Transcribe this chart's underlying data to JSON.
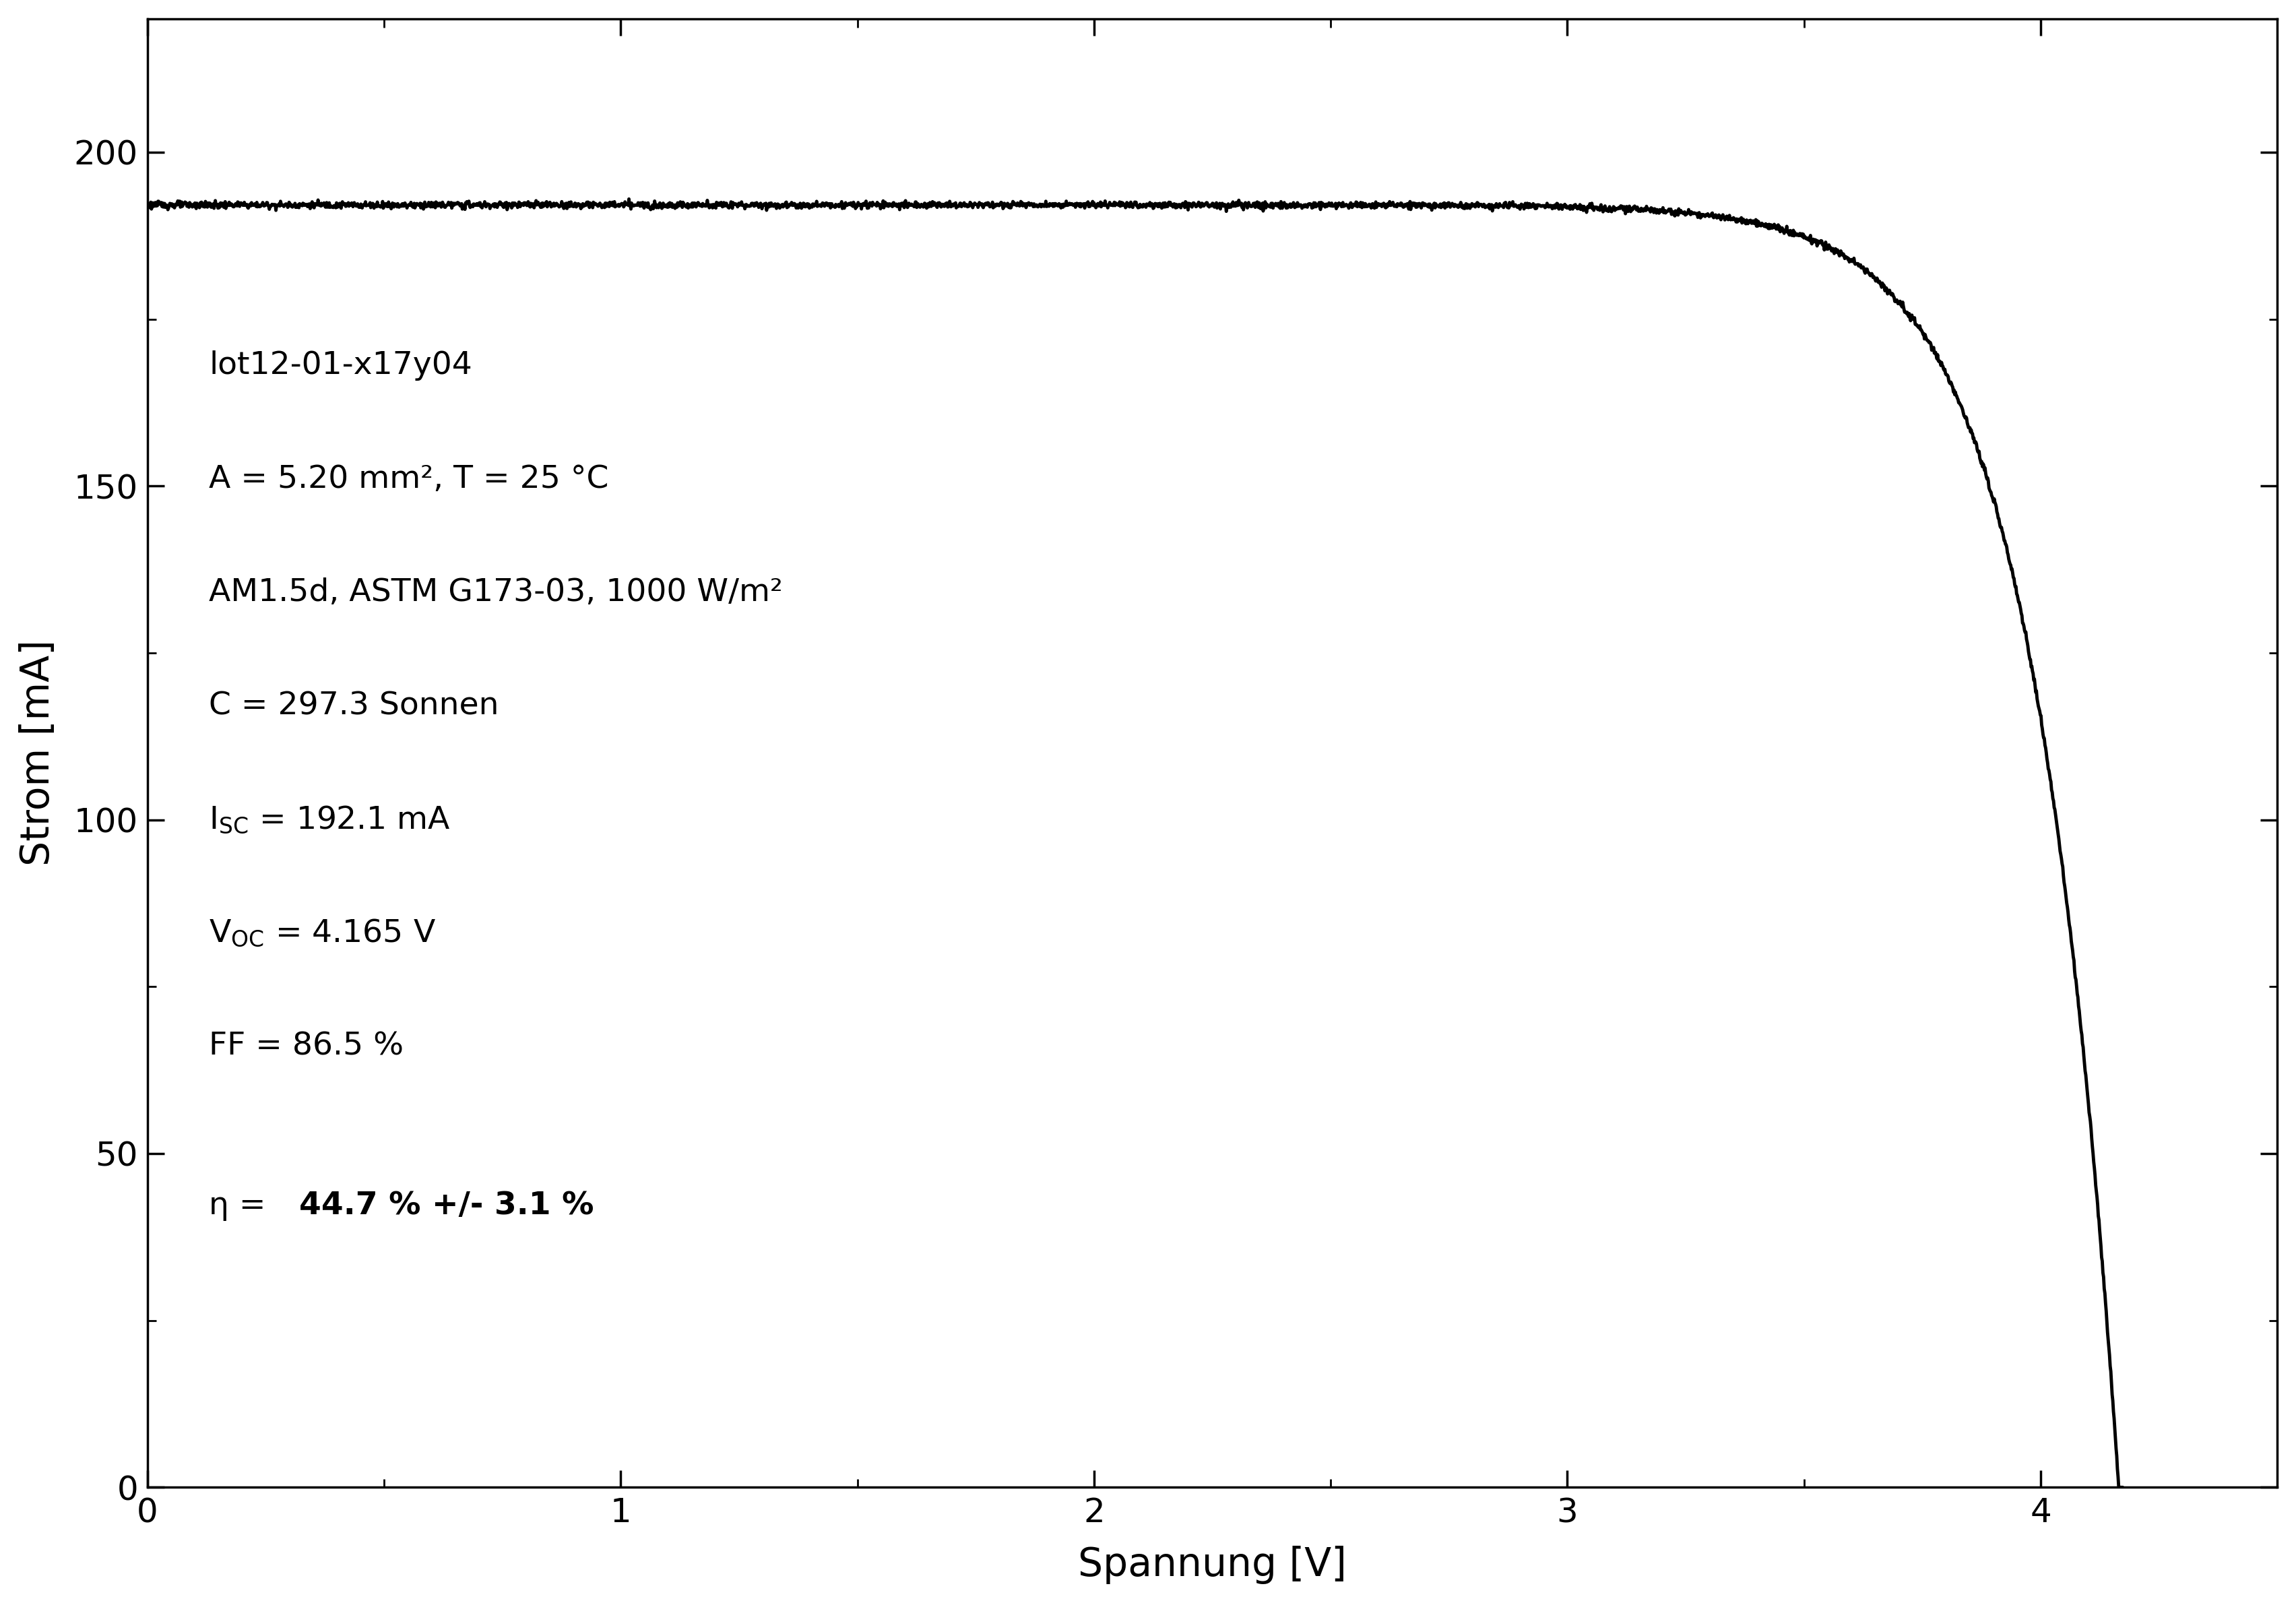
{
  "title": "",
  "xlabel": "Spannung [V]",
  "ylabel": "Strom [mA]",
  "xlim": [
    0,
    4.5
  ],
  "ylim": [
    0,
    220
  ],
  "xticks": [
    0,
    1,
    2,
    3,
    4
  ],
  "yticks": [
    0,
    50,
    100,
    150,
    200
  ],
  "Isc": 192.1,
  "Voc": 4.165,
  "FF": 86.5,
  "nVt": 0.18,
  "Rs": 0.001,
  "line_color": "#000000",
  "line_width": 3.5,
  "annotation_lines": [
    "lot12-01-x17y04",
    "A = 5.20 mm², T = 25 °C",
    "AM1.5d, ASTM G173-03, 1000 W/m²",
    "C = 297.3 Sonnen"
  ],
  "annotation_Isc_val": " = 192.1 mA",
  "annotation_Voc_val": " = 4.165 V",
  "annotation_FF": "FF = 86.5 %",
  "annotation_eta": "η = ",
  "annotation_eta_bold": "44.7 % +/- 3.1 %",
  "font_size_ticks": 36,
  "font_size_labels": 42,
  "font_size_annotations": 34,
  "background_color": "#ffffff",
  "axes_color": "#000000",
  "noise_amplitude": 0.25
}
